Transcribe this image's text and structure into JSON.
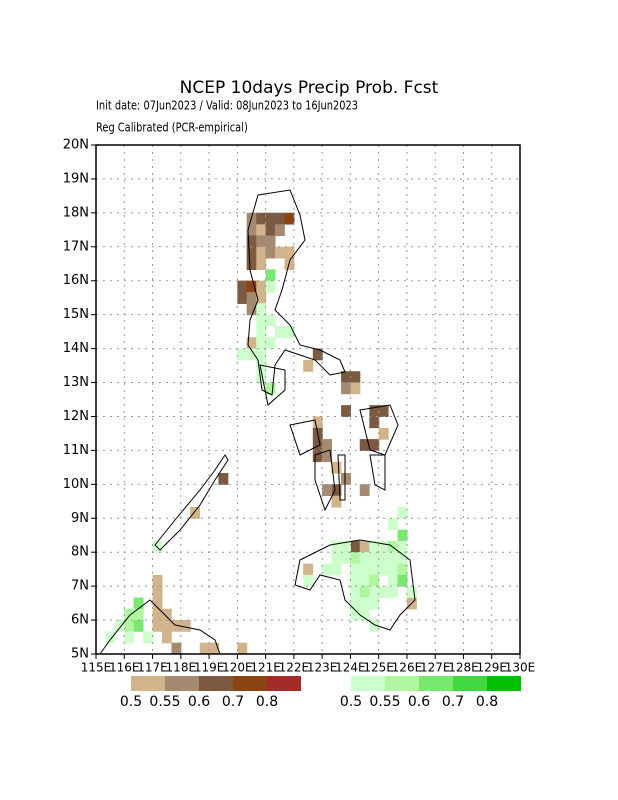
{
  "chart_data": {
    "type": "gridmap",
    "title": "NCEP 10days Precip Prob. Fcst",
    "subtitle": "Init date: 07Jun2023 / Valid: 08Jun2023 to 16Jun2023",
    "note": "Reg Calibrated (PCR-empirical)",
    "xlim": [
      115,
      130
    ],
    "ylim": [
      5,
      20
    ],
    "xticks": [
      {
        "value": 115,
        "label": "115E"
      },
      {
        "value": 116,
        "label": "116E"
      },
      {
        "value": 117,
        "label": "117E"
      },
      {
        "value": 118,
        "label": "118E"
      },
      {
        "value": 119,
        "label": "119E"
      },
      {
        "value": 120,
        "label": "120E"
      },
      {
        "value": 121,
        "label": "121E"
      },
      {
        "value": 122,
        "label": "122E"
      },
      {
        "value": 123,
        "label": "123E"
      },
      {
        "value": 124,
        "label": "124E"
      },
      {
        "value": 125,
        "label": "125E"
      },
      {
        "value": 126,
        "label": "126E"
      },
      {
        "value": 127,
        "label": "127E"
      },
      {
        "value": 128,
        "label": "128E"
      },
      {
        "value": 129,
        "label": "129E"
      },
      {
        "value": 130,
        "label": "130E"
      }
    ],
    "yticks": [
      {
        "value": 5,
        "label": "5N"
      },
      {
        "value": 6,
        "label": "6N"
      },
      {
        "value": 7,
        "label": "7N"
      },
      {
        "value": 8,
        "label": "8N"
      },
      {
        "value": 9,
        "label": "9N"
      },
      {
        "value": 10,
        "label": "10N"
      },
      {
        "value": 11,
        "label": "11N"
      },
      {
        "value": 12,
        "label": "12N"
      },
      {
        "value": 13,
        "label": "13N"
      },
      {
        "value": 14,
        "label": "14N"
      },
      {
        "value": 15,
        "label": "15N"
      },
      {
        "value": 16,
        "label": "16N"
      },
      {
        "value": 17,
        "label": "17N"
      },
      {
        "value": 18,
        "label": "18N"
      },
      {
        "value": 19,
        "label": "19N"
      },
      {
        "value": 20,
        "label": "20N"
      }
    ],
    "grid": true,
    "dry_scale": {
      "levels": [
        0.5,
        0.55,
        0.6,
        0.7,
        0.8
      ],
      "colors": [
        "#d2b48c",
        "#a58a72",
        "#7c5a42",
        "#8b4513",
        "#a52a2a"
      ]
    },
    "wet_scale": {
      "levels": [
        0.5,
        0.55,
        0.6,
        0.7,
        0.8
      ],
      "colors": [
        "#ccffcc",
        "#b0f5a0",
        "#78e870",
        "#40d840",
        "#00c000"
      ]
    },
    "dry_cells": [
      [
        120.33,
        17.67,
        0.55
      ],
      [
        120.67,
        17.67,
        0.6
      ],
      [
        121.0,
        17.67,
        0.6
      ],
      [
        121.33,
        17.67,
        0.6
      ],
      [
        121.67,
        17.67,
        0.7
      ],
      [
        120.33,
        17.33,
        0.55
      ],
      [
        120.67,
        17.33,
        0.5
      ],
      [
        121.0,
        17.33,
        0.6
      ],
      [
        121.33,
        17.33,
        0.55
      ],
      [
        120.33,
        17.0,
        0.6
      ],
      [
        120.67,
        17.0,
        0.55
      ],
      [
        121.0,
        17.0,
        0.55
      ],
      [
        120.33,
        16.67,
        0.6
      ],
      [
        120.67,
        16.67,
        0.5
      ],
      [
        121.0,
        16.67,
        0.55
      ],
      [
        121.33,
        16.67,
        0.5
      ],
      [
        121.67,
        16.67,
        0.5
      ],
      [
        120.33,
        16.33,
        0.6
      ],
      [
        120.67,
        16.33,
        0.5
      ],
      [
        121.67,
        16.33,
        0.5
      ],
      [
        120.0,
        15.67,
        0.6
      ],
      [
        120.33,
        15.67,
        0.7
      ],
      [
        120.67,
        15.67,
        0.5
      ],
      [
        120.0,
        15.33,
        0.6
      ],
      [
        120.33,
        15.33,
        0.55
      ],
      [
        120.67,
        15.33,
        0.5
      ],
      [
        120.33,
        15.0,
        0.55
      ],
      [
        120.33,
        14.0,
        0.5
      ],
      [
        122.67,
        13.67,
        0.6
      ],
      [
        122.33,
        13.33,
        0.5
      ],
      [
        123.67,
        13.0,
        0.6
      ],
      [
        124.0,
        13.0,
        0.6
      ],
      [
        123.67,
        12.67,
        0.55
      ],
      [
        124.0,
        12.67,
        0.5
      ],
      [
        123.67,
        12.0,
        0.6
      ],
      [
        124.67,
        12.0,
        0.6
      ],
      [
        125.0,
        12.0,
        0.6
      ],
      [
        124.67,
        11.67,
        0.6
      ],
      [
        125.0,
        11.33,
        0.5
      ],
      [
        124.33,
        11.0,
        0.6
      ],
      [
        124.67,
        11.0,
        0.6
      ],
      [
        122.67,
        11.67,
        0.5
      ],
      [
        122.67,
        11.33,
        0.6
      ],
      [
        122.67,
        11.0,
        0.6
      ],
      [
        123.0,
        11.0,
        0.55
      ],
      [
        122.67,
        10.67,
        0.6
      ],
      [
        123.0,
        10.67,
        0.55
      ],
      [
        123.33,
        10.33,
        0.5
      ],
      [
        123.67,
        10.0,
        0.55
      ],
      [
        123.33,
        9.67,
        0.6
      ],
      [
        123.0,
        9.67,
        0.55
      ],
      [
        124.33,
        9.67,
        0.55
      ],
      [
        123.33,
        9.33,
        0.5
      ],
      [
        119.33,
        10.0,
        0.6
      ],
      [
        118.33,
        9.0,
        0.5
      ],
      [
        124.0,
        8.0,
        0.6
      ],
      [
        124.33,
        8.0,
        0.5
      ],
      [
        122.33,
        7.33,
        0.5
      ],
      [
        126.0,
        6.33,
        0.5
      ],
      [
        117.0,
        7.0,
        0.5
      ],
      [
        117.0,
        6.67,
        0.5
      ],
      [
        117.0,
        6.33,
        0.5
      ],
      [
        117.0,
        6.0,
        0.5
      ],
      [
        117.33,
        6.0,
        0.5
      ],
      [
        117.67,
        5.67,
        0.5
      ],
      [
        118.0,
        5.67,
        0.5
      ],
      [
        117.0,
        5.67,
        0.5
      ],
      [
        117.33,
        5.67,
        0.5
      ],
      [
        117.33,
        5.33,
        0.5
      ],
      [
        117.67,
        5.0,
        0.55
      ],
      [
        118.67,
        5.0,
        0.5
      ],
      [
        119.0,
        5.0,
        0.5
      ],
      [
        120.0,
        5.0,
        0.5
      ]
    ],
    "wet_cells": [
      [
        121.0,
        16.0,
        0.6
      ],
      [
        121.0,
        15.67,
        0.5
      ],
      [
        120.67,
        15.0,
        0.5
      ],
      [
        120.67,
        14.67,
        0.5
      ],
      [
        121.0,
        14.67,
        0.5
      ],
      [
        121.33,
        14.33,
        0.5
      ],
      [
        120.67,
        14.33,
        0.5
      ],
      [
        120.67,
        14.0,
        0.5
      ],
      [
        121.0,
        14.0,
        0.5
      ],
      [
        120.0,
        13.67,
        0.5
      ],
      [
        120.33,
        13.67,
        0.5
      ],
      [
        120.67,
        13.67,
        0.5
      ],
      [
        120.67,
        13.33,
        0.5
      ],
      [
        120.67,
        13.0,
        0.5
      ],
      [
        121.0,
        12.67,
        0.55
      ],
      [
        121.67,
        14.33,
        0.5
      ],
      [
        123.33,
        8.0,
        0.5
      ],
      [
        123.67,
        8.0,
        0.5
      ],
      [
        124.67,
        8.0,
        0.5
      ],
      [
        125.0,
        8.0,
        0.5
      ],
      [
        125.33,
        8.0,
        0.55
      ],
      [
        125.67,
        8.33,
        0.6
      ],
      [
        125.33,
        8.67,
        0.5
      ],
      [
        125.67,
        9.0,
        0.5
      ],
      [
        125.67,
        8.0,
        0.5
      ],
      [
        123.33,
        7.67,
        0.5
      ],
      [
        123.67,
        7.67,
        0.5
      ],
      [
        124.0,
        7.67,
        0.55
      ],
      [
        124.33,
        7.67,
        0.5
      ],
      [
        124.67,
        7.67,
        0.5
      ],
      [
        125.0,
        7.67,
        0.5
      ],
      [
        125.33,
        7.67,
        0.5
      ],
      [
        125.67,
        7.67,
        0.5
      ],
      [
        123.0,
        7.33,
        0.5
      ],
      [
        123.33,
        7.33,
        0.5
      ],
      [
        124.0,
        7.33,
        0.5
      ],
      [
        124.33,
        7.33,
        0.5
      ],
      [
        124.67,
        7.33,
        0.5
      ],
      [
        125.0,
        7.33,
        0.5
      ],
      [
        125.33,
        7.33,
        0.5
      ],
      [
        125.67,
        7.33,
        0.55
      ],
      [
        124.0,
        7.0,
        0.5
      ],
      [
        124.33,
        7.0,
        0.5
      ],
      [
        124.67,
        7.0,
        0.55
      ],
      [
        125.33,
        7.0,
        0.5
      ],
      [
        125.67,
        7.0,
        0.6
      ],
      [
        124.0,
        6.67,
        0.5
      ],
      [
        124.33,
        6.67,
        0.55
      ],
      [
        124.67,
        6.67,
        0.5
      ],
      [
        125.0,
        6.67,
        0.5
      ],
      [
        125.33,
        6.67,
        0.5
      ],
      [
        124.0,
        6.33,
        0.5
      ],
      [
        124.33,
        6.33,
        0.5
      ],
      [
        124.67,
        6.33,
        0.5
      ],
      [
        124.0,
        6.0,
        0.5
      ],
      [
        124.33,
        6.0,
        0.5
      ],
      [
        124.67,
        5.67,
        0.5
      ],
      [
        122.33,
        7.0,
        0.5
      ],
      [
        126.0,
        6.67,
        0.5
      ],
      [
        116.33,
        6.33,
        0.6
      ],
      [
        116.0,
        6.0,
        0.55
      ],
      [
        116.33,
        6.0,
        0.55
      ],
      [
        115.67,
        5.67,
        0.5
      ],
      [
        116.0,
        5.67,
        0.55
      ],
      [
        116.33,
        5.67,
        0.6
      ],
      [
        115.33,
        5.33,
        0.5
      ],
      [
        116.0,
        5.33,
        0.5
      ],
      [
        116.67,
        5.33,
        0.5
      ],
      [
        117.0,
        8.0,
        0.5
      ]
    ]
  }
}
